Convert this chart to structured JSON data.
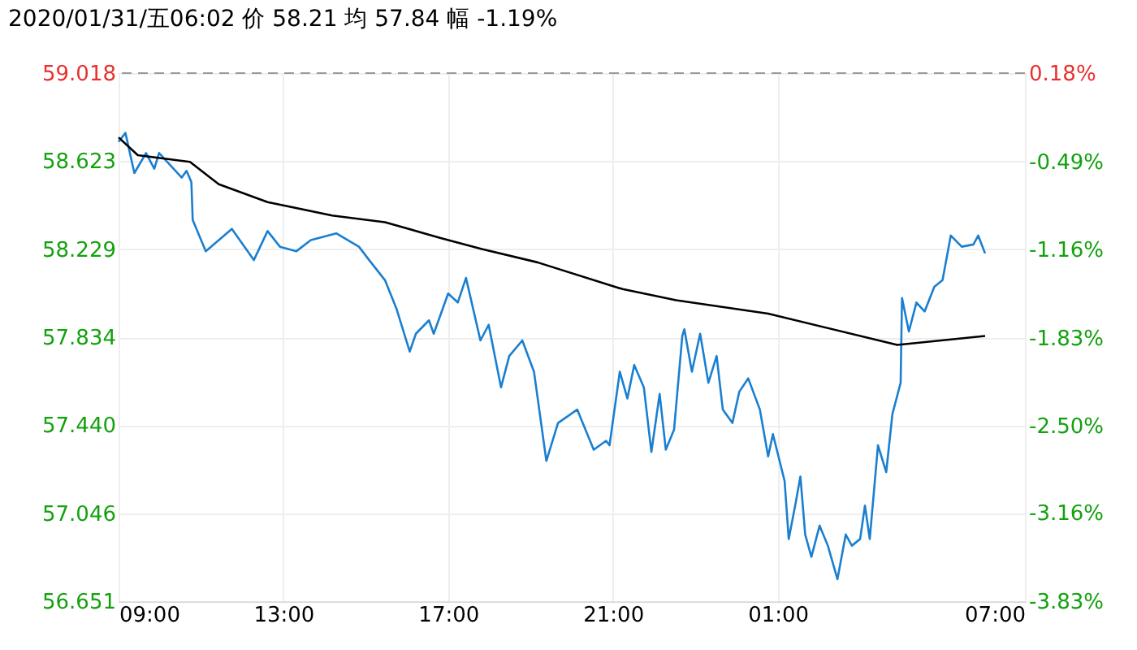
{
  "chart_data": {
    "type": "line",
    "title": "2020/01/31/五06:02 价 58.21 均 57.84 幅 -1.19%",
    "xlim": [
      "2020-01-30T09:00",
      "2020-01-31T07:00"
    ],
    "xticks": [
      {
        "value": "2020-01-30T09:00",
        "label": "09:00"
      },
      {
        "value": "2020-01-30T13:00",
        "label": "13:00"
      },
      {
        "value": "2020-01-30T17:00",
        "label": "17:00"
      },
      {
        "value": "2020-01-30T21:00",
        "label": "21:00"
      },
      {
        "value": "2020-01-31T01:00",
        "label": "01:00"
      },
      {
        "value": "2020-01-31T07:00",
        "label": "07:00"
      }
    ],
    "ylim": [
      56.651,
      59.018
    ],
    "yticks": [
      56.651,
      57.046,
      {
        "value": 57.44,
        "label": "57.440"
      },
      57.834,
      58.229,
      58.623,
      59.018
    ],
    "y2lim": [
      -3.83,
      0.18
    ],
    "y2ticks": [
      {
        "value": -3.83,
        "label": "-3.83%"
      },
      {
        "value": -3.16,
        "label": "-3.16%"
      },
      {
        "value": -2.5,
        "label": "-2.50%"
      },
      {
        "value": -1.83,
        "label": "-1.83%"
      },
      {
        "value": -1.16,
        "label": "-1.16%"
      },
      {
        "value": -0.49,
        "label": "-0.49%"
      },
      {
        "value": 0.18,
        "label": "0.18%"
      }
    ],
    "grid": true,
    "line_style": "solid",
    "marker": "none",
    "ref_lines": [
      {
        "axis": "y",
        "value": 59.018,
        "label": null,
        "color": "#999999",
        "line_style": "dashed"
      }
    ],
    "series": [
      {
        "color": "#1a7fd0",
        "x": [
          "2020-01-30T09:00",
          "2020-01-30T09:10",
          "2020-01-30T09:23",
          "2020-01-30T09:40",
          "2020-01-30T09:52",
          "2020-01-30T09:59",
          "2020-01-30T10:32",
          "2020-01-30T10:39",
          "2020-01-30T10:46",
          "2020-01-30T10:48",
          "2020-01-30T11:07",
          "2020-01-30T11:45",
          "2020-01-30T12:17",
          "2020-01-30T12:37",
          "2020-01-30T12:55",
          "2020-01-30T13:19",
          "2020-01-30T13:40",
          "2020-01-30T14:17",
          "2020-01-30T14:50",
          "2020-01-30T15:05",
          "2020-01-30T15:28",
          "2020-01-30T15:45",
          "2020-01-30T16:04",
          "2020-01-30T16:13",
          "2020-01-30T16:32",
          "2020-01-30T16:39",
          "2020-01-30T17:00",
          "2020-01-30T17:14",
          "2020-01-30T17:26",
          "2020-01-30T17:47",
          "2020-01-30T17:59",
          "2020-01-30T18:17",
          "2020-01-30T18:29",
          "2020-01-30T18:48",
          "2020-01-30T19:05",
          "2020-01-30T19:23",
          "2020-01-30T19:40",
          "2020-01-30T20:08",
          "2020-01-30T20:32",
          "2020-01-30T20:50",
          "2020-01-30T20:55",
          "2020-01-30T21:10",
          "2020-01-30T21:21",
          "2020-01-30T21:31",
          "2020-01-30T21:45",
          "2020-01-30T21:56",
          "2020-01-30T22:08",
          "2020-01-30T22:17",
          "2020-01-30T22:29",
          "2020-01-30T22:41",
          "2020-01-30T22:44",
          "2020-01-30T22:55",
          "2020-01-30T23:07",
          "2020-01-30T23:19",
          "2020-01-30T23:31",
          "2020-01-30T23:40",
          "2020-01-30T23:54",
          "2020-01-31T00:04",
          "2020-01-31T00:17",
          "2020-01-31T00:34",
          "2020-01-31T00:46",
          "2020-01-31T00:53",
          "2020-01-31T01:10",
          "2020-01-31T01:16",
          "2020-01-31T01:26",
          "2020-01-31T01:33",
          "2020-01-31T01:40",
          "2020-01-31T01:49",
          "2020-01-31T02:01",
          "2020-01-31T02:13",
          "2020-01-31T02:27",
          "2020-01-31T02:39",
          "2020-01-31T02:48",
          "2020-01-31T03:00",
          "2020-01-31T03:07",
          "2020-01-31T03:14",
          "2020-01-31T03:26",
          "2020-01-31T03:38",
          "2020-01-31T03:47",
          "2020-01-31T03:59",
          "2020-01-31T04:01",
          "2020-01-31T04:11",
          "2020-01-31T04:22",
          "2020-01-31T04:34",
          "2020-01-31T04:48",
          "2020-01-31T05:00",
          "2020-01-31T05:12",
          "2020-01-31T05:28",
          "2020-01-31T05:45",
          "2020-01-31T05:52",
          "2020-01-31T06:02"
        ],
        "values": [
          58.71,
          58.75,
          58.57,
          58.66,
          58.59,
          58.66,
          58.55,
          58.58,
          58.53,
          58.36,
          58.22,
          58.32,
          58.18,
          58.31,
          58.24,
          58.22,
          58.27,
          58.3,
          58.24,
          58.18,
          58.09,
          57.96,
          57.77,
          57.85,
          57.91,
          57.85,
          58.03,
          57.99,
          58.1,
          57.82,
          57.89,
          57.61,
          57.75,
          57.82,
          57.68,
          57.28,
          57.45,
          57.51,
          57.33,
          57.37,
          57.35,
          57.68,
          57.56,
          57.71,
          57.61,
          57.32,
          57.58,
          57.33,
          57.42,
          57.84,
          57.87,
          57.68,
          57.85,
          57.63,
          57.75,
          57.51,
          57.45,
          57.59,
          57.65,
          57.51,
          57.3,
          57.4,
          57.19,
          56.93,
          57.09,
          57.21,
          56.95,
          56.85,
          56.99,
          56.9,
          56.75,
          56.95,
          56.9,
          56.93,
          57.08,
          56.93,
          57.35,
          57.23,
          57.49,
          57.63,
          58.01,
          57.86,
          57.99,
          57.95,
          58.06,
          58.09,
          58.29,
          58.24,
          58.25,
          58.29,
          58.21
        ]
      },
      {
        "color": "#000000",
        "x": [
          "2020-01-30T09:00",
          "2020-01-30T09:28",
          "2020-01-30T10:44",
          "2020-01-30T11:26",
          "2020-01-30T12:37",
          "2020-01-30T14:11",
          "2020-01-30T15:28",
          "2020-01-30T16:48",
          "2020-01-30T17:49",
          "2020-01-30T19:10",
          "2020-01-30T21:14",
          "2020-01-30T22:32",
          "2020-01-31T00:46",
          "2020-01-31T03:54",
          "2020-01-31T06:02"
        ],
        "values": [
          58.73,
          58.65,
          58.62,
          58.52,
          58.44,
          58.38,
          58.35,
          58.28,
          58.23,
          58.17,
          58.05,
          58.0,
          57.94,
          57.8,
          57.84
        ]
      }
    ]
  }
}
